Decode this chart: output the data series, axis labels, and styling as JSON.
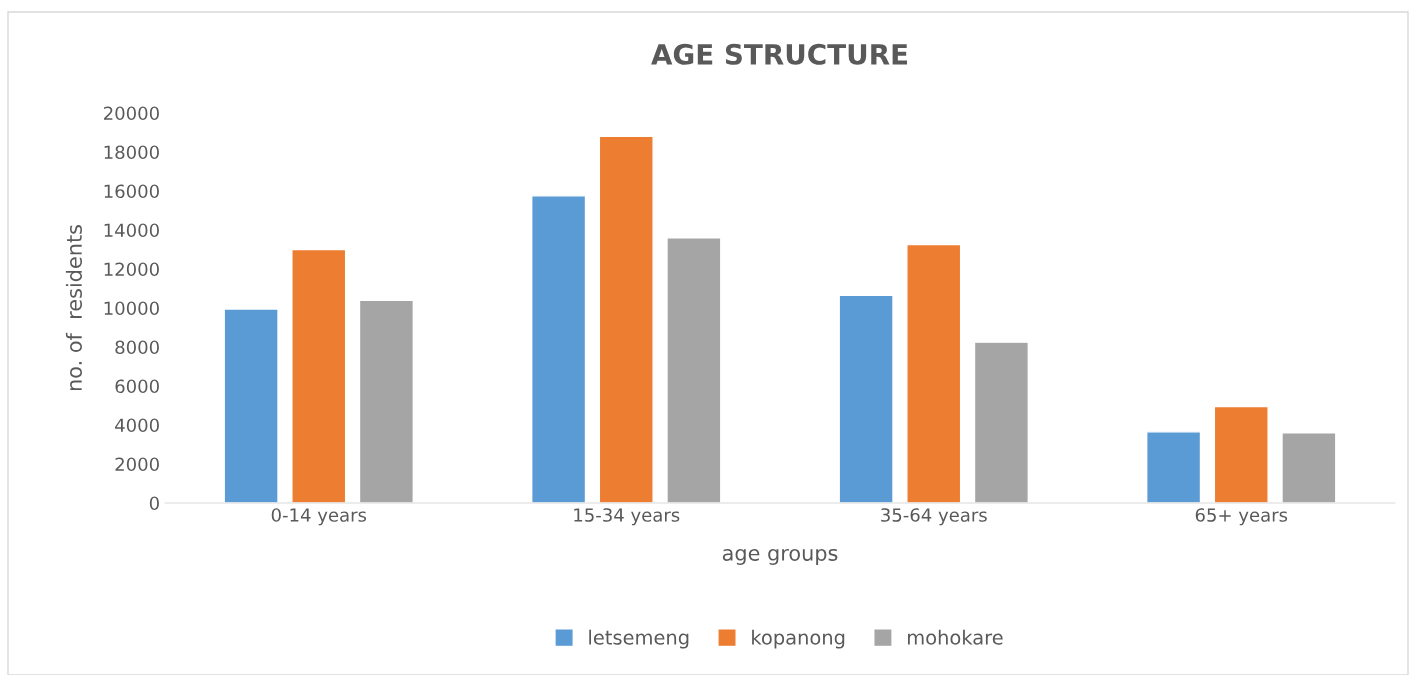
{
  "chart_data": {
    "type": "bar",
    "title": "AGE STRUCTURE",
    "xlabel": "age groups",
    "ylabel": "no. of  residents",
    "categories": [
      "0-14 years",
      "15-34 years",
      "35-64 years",
      "65+ years"
    ],
    "series": [
      {
        "name": "letsemeng",
        "color": "#5b9bd5",
        "values": [
          9950,
          15750,
          10650,
          3650
        ]
      },
      {
        "name": "kopanong",
        "color": "#ed7d31",
        "values": [
          13000,
          18800,
          13250,
          4950
        ]
      },
      {
        "name": "mohokare",
        "color": "#a5a5a5",
        "values": [
          10400,
          13600,
          8250,
          3600
        ]
      }
    ],
    "ylim": [
      0,
      20000
    ],
    "yticks": [
      0,
      2000,
      4000,
      6000,
      8000,
      10000,
      12000,
      14000,
      16000,
      18000,
      20000
    ],
    "grid": false,
    "legend": "bottom"
  }
}
